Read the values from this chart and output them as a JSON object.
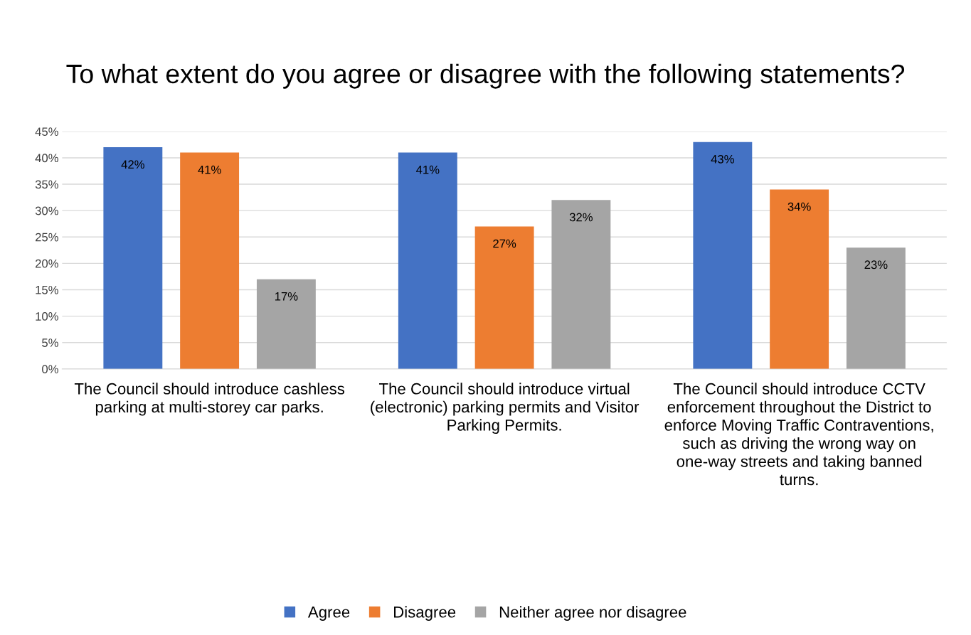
{
  "chart_data": {
    "type": "bar",
    "title": "To what extent do you agree or disagree with the following statements?",
    "categories": [
      "The Council should introduce cashless parking at multi-storey car parks.",
      "The Council should introduce virtual (electronic) parking permits and Visitor Parking Permits.",
      "The Council should introduce CCTV enforcement throughout the District to enforce Moving Traffic Contraventions, such as driving the wrong way on one-way streets and taking banned turns."
    ],
    "series": [
      {
        "name": "Agree",
        "color": "#4472c4",
        "values": [
          42,
          41,
          43
        ],
        "value_labels": [
          "42%",
          "41%",
          "43%"
        ]
      },
      {
        "name": "Disagree",
        "color": "#ed7d31",
        "values": [
          41,
          27,
          34
        ],
        "value_labels": [
          "41%",
          "27%",
          "34%"
        ]
      },
      {
        "name": "Neither agree nor disagree",
        "color": "#a5a5a5",
        "values": [
          17,
          32,
          23
        ],
        "value_labels": [
          "17%",
          "32%",
          "23%"
        ]
      }
    ],
    "ylim": [
      0,
      45
    ],
    "yticks": [
      {
        "value": 0,
        "label": "0%"
      },
      {
        "value": 5,
        "label": "5%"
      },
      {
        "value": 10,
        "label": "10%"
      },
      {
        "value": 15,
        "label": "15%"
      },
      {
        "value": 20,
        "label": "20%"
      },
      {
        "value": 25,
        "label": "25%"
      },
      {
        "value": 30,
        "label": "30%"
      },
      {
        "value": 35,
        "label": "35%"
      },
      {
        "value": 40,
        "label": "40%"
      },
      {
        "value": 45,
        "label": "45%"
      }
    ],
    "grid": "y",
    "legend": "bottom"
  }
}
